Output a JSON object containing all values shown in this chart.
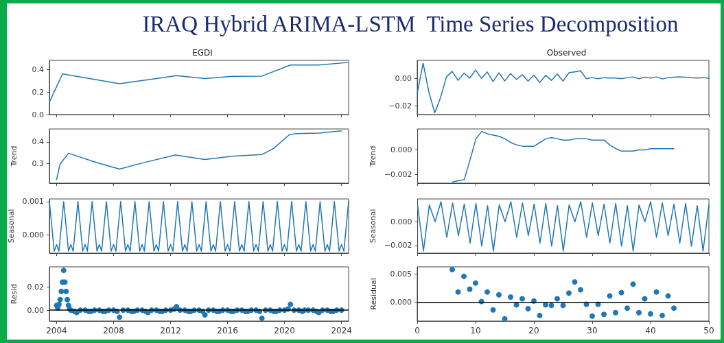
{
  "chart_data": [
    {
      "type": "line",
      "title": "EGDI",
      "annotations": [
        "IRAQ Hybrid ARIMA-LSTM  Time Series Decomposition"
      ],
      "color": "#1f77b4",
      "marker": "none",
      "line_style": "solid",
      "grid": false,
      "tick_labels": "y",
      "x": [
        "2003-07",
        "2004-06",
        "2008-06",
        "2010-07",
        "2012-06",
        "2014-06",
        "2016-05",
        "2018-06",
        "2020-06",
        "2022-06",
        "2024-06"
      ],
      "values": [
        0.11,
        0.36,
        0.274,
        0.31,
        0.345,
        0.319,
        0.339,
        0.341,
        0.439,
        0.439,
        0.461
      ],
      "xlim": [
        "2003-07",
        "2024-07"
      ],
      "xticks": [
        "2004",
        "2008",
        "2012",
        "2016",
        "2020",
        "2024"
      ],
      "ylim": [
        0,
        0.48
      ],
      "yticks": [
        {
          "value": 0,
          "label": "0.0"
        },
        0.2,
        0.4
      ]
    },
    {
      "type": "line",
      "ylabel": "Trend",
      "color": "#1f77b4",
      "marker": "none",
      "line_style": "solid",
      "grid": false,
      "tick_labels": "y",
      "x": [
        "2004-01",
        "2004-04",
        "2004-11",
        "2006-09",
        "2008-06",
        "2010-01",
        "2012-05",
        "2014-06",
        "2016-05",
        "2018-06",
        "2019-04",
        "2020-05",
        "2020-11",
        "2022-06",
        "2024-01"
      ],
      "values": [
        0.227,
        0.298,
        0.348,
        0.308,
        0.275,
        0.303,
        0.34,
        0.319,
        0.334,
        0.342,
        0.371,
        0.433,
        0.439,
        0.441,
        0.451
      ],
      "xlim": [
        "2003-07",
        "2024-07"
      ],
      "xticks": [
        "2004",
        "2008",
        "2012",
        "2016",
        "2020",
        "2024"
      ],
      "ylim": [
        0.21,
        0.46
      ],
      "yticks": [
        0.3,
        0.4
      ]
    },
    {
      "type": "line",
      "ylabel": "Seasonal",
      "color": "#1f77b4",
      "marker": "none",
      "line_style": "solid",
      "grid": false,
      "tick_labels": "y",
      "x": [
        "2003-07",
        "2003-11",
        "2004-01",
        "2004-03",
        "2004-07",
        "2004-11",
        "2005-01",
        "2005-03",
        "2005-07",
        "2005-11",
        "2006-01",
        "2006-03",
        "2006-07",
        "2006-11",
        "2007-01",
        "2007-03",
        "2007-07",
        "2007-11",
        "2008-01",
        "2008-03",
        "2008-07",
        "2008-11",
        "2009-01",
        "2009-03",
        "2009-07",
        "2009-11",
        "2010-01",
        "2010-03",
        "2010-07",
        "2010-11",
        "2011-01",
        "2011-03",
        "2011-07",
        "2011-11",
        "2012-01",
        "2012-03",
        "2012-07",
        "2012-11",
        "2013-01",
        "2013-03",
        "2013-07",
        "2013-11",
        "2014-01",
        "2014-03",
        "2014-07",
        "2014-11",
        "2015-01",
        "2015-03",
        "2015-07",
        "2015-11",
        "2016-01",
        "2016-03",
        "2016-07",
        "2016-11",
        "2017-01",
        "2017-03",
        "2017-07",
        "2017-11",
        "2018-01",
        "2018-03",
        "2018-07",
        "2018-11",
        "2019-01",
        "2019-03",
        "2019-07",
        "2019-11",
        "2020-01",
        "2020-03",
        "2020-07",
        "2020-11",
        "2021-01",
        "2021-03",
        "2021-07",
        "2021-11",
        "2022-01",
        "2022-03",
        "2022-07",
        "2022-11",
        "2023-01",
        "2023-03",
        "2023-07",
        "2023-11",
        "2024-01",
        "2024-03",
        "2024-07"
      ],
      "values": [
        0.001,
        -0.0005,
        -0.0003,
        -0.0005,
        0.001,
        -0.0005,
        -0.0003,
        -0.0005,
        0.001,
        -0.0005,
        -0.0003,
        -0.0005,
        0.001,
        -0.0005,
        -0.0003,
        -0.0005,
        0.001,
        -0.0005,
        -0.0003,
        -0.0005,
        0.001,
        -0.0005,
        -0.0003,
        -0.0005,
        0.001,
        -0.0005,
        -0.0003,
        -0.0005,
        0.001,
        -0.0005,
        -0.0003,
        -0.0005,
        0.001,
        -0.0005,
        -0.0003,
        -0.0005,
        0.001,
        -0.0005,
        -0.0003,
        -0.0005,
        0.001,
        -0.0005,
        -0.0003,
        -0.0005,
        0.001,
        -0.0005,
        -0.0003,
        -0.0005,
        0.001,
        -0.0005,
        -0.0003,
        -0.0005,
        0.001,
        -0.0005,
        -0.0003,
        -0.0005,
        0.001,
        -0.0005,
        -0.0003,
        -0.0005,
        0.001,
        -0.0005,
        -0.0003,
        -0.0005,
        0.001,
        -0.0005,
        -0.0003,
        -0.0005,
        0.001,
        -0.0005,
        -0.0003,
        -0.0005,
        0.001,
        -0.0005,
        -0.0003,
        -0.0005,
        0.001,
        -0.0005,
        -0.0003,
        -0.0005,
        0.001,
        -0.0005,
        -0.0003,
        -0.0005,
        0.001
      ],
      "xlim": [
        "2003-07",
        "2024-07"
      ],
      "xticks": [
        "2004",
        "2008",
        "2012",
        "2016",
        "2020",
        "2024"
      ],
      "ylim": [
        -0.00056,
        0.00108
      ],
      "yticks": [
        {
          "value": 0,
          "label": "0.000"
        },
        0.001
      ]
    },
    {
      "type": "scatter",
      "ylabel": "Resid",
      "color": "#1f77b4",
      "marker": "circle",
      "grid": false,
      "x": [
        "2004-01",
        "2004-02",
        "2004-03",
        "2004-04",
        "2004-05",
        "2004-06",
        "2004-07",
        "2004-08",
        "2004-09",
        "2004-10",
        "2004-11",
        "2004-12",
        "2005-01",
        "2005-04",
        "2005-06",
        "2005-09",
        "2006-01",
        "2006-04",
        "2006-06",
        "2006-09",
        "2007-01",
        "2007-04",
        "2007-06",
        "2007-09",
        "2008-01",
        "2008-04",
        "2008-06",
        "2008-09",
        "2009-01",
        "2009-04",
        "2009-06",
        "2009-09",
        "2010-01",
        "2010-04",
        "2010-06",
        "2010-09",
        "2011-01",
        "2011-04",
        "2011-06",
        "2011-09",
        "2012-01",
        "2012-04",
        "2012-06",
        "2012-09",
        "2013-01",
        "2013-04",
        "2013-06",
        "2013-09",
        "2014-01",
        "2014-04",
        "2014-06",
        "2014-09",
        "2015-01",
        "2015-04",
        "2015-06",
        "2015-09",
        "2016-01",
        "2016-04",
        "2016-06",
        "2016-09",
        "2017-01",
        "2017-04",
        "2017-06",
        "2017-09",
        "2018-01",
        "2018-04",
        "2018-06",
        "2018-09",
        "2019-01",
        "2019-04",
        "2019-06",
        "2019-09",
        "2020-01",
        "2020-04",
        "2020-06",
        "2020-09",
        "2021-01",
        "2021-04",
        "2021-06",
        "2021-09",
        "2022-01",
        "2022-04",
        "2022-06",
        "2022-09",
        "2023-01",
        "2023-04",
        "2023-06",
        "2023-09",
        "2024-01"
      ],
      "values": [
        0.004,
        0.002,
        0.005,
        0.009,
        0.016,
        0.024,
        0.034,
        0.024,
        0.016,
        0.009,
        0.004,
        0.001,
        0,
        -0.001,
        -0.002,
        0,
        0,
        -0.001,
        -0.001,
        0,
        0,
        -0.001,
        -0.001,
        0,
        0,
        -0.001,
        -0.006,
        0,
        0,
        -0.001,
        -0.001,
        0,
        0,
        -0.001,
        -0.002,
        0,
        0,
        -0.001,
        -0.001,
        0,
        0,
        0.001,
        0.003,
        0,
        0,
        -0.001,
        -0.001,
        0,
        0,
        -0.001,
        -0.004,
        0,
        0,
        -0.001,
        -0.001,
        0,
        0,
        -0.001,
        -0.001,
        0,
        0,
        -0.001,
        -0.001,
        0,
        0,
        -0.001,
        -0.007,
        0,
        0,
        -0.001,
        -0.001,
        0,
        0,
        0.001,
        0.005,
        0,
        0,
        -0.001,
        0,
        0,
        0,
        -0.001,
        -0.002,
        0,
        0,
        -0.001,
        -0.001,
        0,
        0
      ],
      "xlim": [
        "2003-07",
        "2024-07"
      ],
      "xticks": [
        "2004",
        "2008",
        "2012",
        "2016",
        "2020",
        "2024"
      ],
      "ylim": [
        -0.0093,
        0.037
      ],
      "yticks": [
        {
          "value": 0,
          "label": "0.00"
        },
        0.02
      ],
      "ref_lines": [
        {
          "axis": "y",
          "value": 0,
          "color": "#000000"
        }
      ]
    },
    {
      "type": "line",
      "title": "Observed",
      "color": "#1f77b4",
      "marker": "none",
      "line_style": "solid",
      "grid": false,
      "tick_labels": "y",
      "x": [
        0,
        1,
        2,
        3,
        4,
        5,
        6,
        7,
        8,
        9,
        10,
        11,
        12,
        13,
        14,
        15,
        16,
        17,
        18,
        19,
        20,
        21,
        22,
        23,
        24,
        25,
        26,
        27,
        28,
        29,
        30,
        31,
        32,
        33,
        34,
        35,
        36,
        37,
        38,
        39,
        40,
        41,
        42,
        43,
        44,
        45,
        46,
        47,
        48,
        49,
        50
      ],
      "values": [
        -0.011,
        0.011,
        -0.01,
        -0.025,
        -0.014,
        0.001,
        0.005,
        -0.0015,
        0.0037,
        0.0002,
        0.006,
        0.0,
        0.0046,
        -0.0024,
        0.004,
        -0.002,
        0.0034,
        -0.0008,
        0.0026,
        -0.002,
        0.0023,
        -0.003,
        0.0021,
        -0.0015,
        0.0031,
        -0.002,
        0.004,
        0.0047,
        0.0054,
        -0.0003,
        0.0005,
        -0.0003,
        0.0005,
        0.0002,
        0.0002,
        -0.0003,
        0.0005,
        0.001,
        -0.0003,
        0.0008,
        0.0002,
        0.001,
        -0.0005,
        0.0005,
        0.0008,
        0.001,
        0.0008,
        0.0005,
        0.0002,
        0.0005,
        0.0
      ],
      "xlim": [
        0,
        50
      ],
      "xticks": [
        0,
        10,
        20,
        30,
        40,
        50
      ],
      "ylim": [
        -0.0263,
        0.013
      ],
      "yticks": [
        {
          "value": -0.02,
          "label": "−0.02"
        },
        {
          "value": 0,
          "label": "0.00"
        }
      ]
    },
    {
      "type": "line",
      "ylabel": "Trend",
      "color": "#1f77b4",
      "marker": "none",
      "line_style": "solid",
      "grid": false,
      "tick_labels": "y",
      "x": [
        6,
        7,
        8,
        9,
        10,
        11,
        12,
        13,
        14,
        15,
        16,
        17,
        18,
        19,
        20,
        21,
        22,
        23,
        24,
        25,
        26,
        27,
        28,
        29,
        30,
        31,
        32,
        33,
        34,
        35,
        36,
        37,
        38,
        39,
        40,
        41,
        42,
        43,
        44
      ],
      "values": [
        -0.0026,
        -0.0025,
        -0.0024,
        -0.0008,
        0.0009,
        0.0015,
        0.0013,
        0.0012,
        0.0011,
        0.0009,
        0.0006,
        0.0004,
        0.0003,
        0.0003,
        0.0003,
        0.0006,
        0.0009,
        0.001,
        0.0009,
        0.0008,
        0.0008,
        0.0009,
        0.0009,
        0.0009,
        0.0008,
        0.0008,
        0.0008,
        0.0004,
        0.0001,
        -0.0001,
        -0.0001,
        -0.0001,
        0,
        0,
        0.0001,
        0.0001,
        0.0001,
        0.0001,
        0.0001
      ],
      "xlim": [
        0,
        50
      ],
      "xticks": [
        0,
        10,
        20,
        30,
        40,
        50
      ],
      "ylim": [
        -0.0027,
        0.0017
      ],
      "yticks": [
        {
          "value": -0.002,
          "label": "−0.002"
        },
        {
          "value": 0,
          "label": "0.000"
        }
      ]
    },
    {
      "type": "line",
      "ylabel": "Seasonal",
      "color": "#1f77b4",
      "marker": "none",
      "line_style": "solid",
      "grid": false,
      "tick_labels": "y",
      "x": [
        0,
        1,
        2,
        3,
        4,
        5,
        6,
        7,
        8,
        9,
        10,
        11,
        12,
        13,
        14,
        15,
        16,
        17,
        18,
        19,
        20,
        21,
        22,
        23,
        24,
        25,
        26,
        27,
        28,
        29,
        30,
        31,
        32,
        33,
        34,
        35,
        36,
        37,
        38,
        39,
        40,
        41,
        42,
        43,
        44,
        45,
        46,
        47,
        48,
        49,
        50
      ],
      "values": [
        0.00136,
        -0.00247,
        0.00142,
        0,
        0.0017,
        -0.00131,
        0.00159,
        -0.00116,
        0.0015,
        -0.00181,
        0.00155,
        -0.00206,
        0.00136,
        -0.00247,
        0.00142,
        0,
        0.0017,
        -0.00131,
        0.00159,
        -0.00116,
        0.0015,
        -0.00181,
        0.00155,
        -0.00206,
        0.00136,
        -0.00247,
        0.00142,
        0,
        0.0017,
        -0.00131,
        0.00159,
        -0.00116,
        0.0015,
        -0.00181,
        0.00155,
        -0.00206,
        0.00136,
        -0.00247,
        0.00142,
        0,
        0.0017,
        -0.00131,
        0.00159,
        -0.00116,
        0.0015,
        -0.00181,
        0.00155,
        -0.00206,
        0.00136,
        -0.00247,
        0.00142
      ],
      "xlim": [
        0,
        50
      ],
      "xticks": [
        0,
        10,
        20,
        30,
        40,
        50
      ],
      "ylim": [
        -0.00265,
        0.00193
      ],
      "yticks": [
        {
          "value": -0.002,
          "label": "−0.002"
        },
        {
          "value": 0,
          "label": "0.000"
        }
      ]
    },
    {
      "type": "scatter",
      "ylabel": "Residual",
      "color": "#1f77b4",
      "marker": "circle",
      "grid": false,
      "x": [
        6,
        7,
        8,
        9,
        10,
        11,
        12,
        13,
        14,
        15,
        16,
        17,
        18,
        19,
        20,
        21,
        22,
        23,
        24,
        25,
        26,
        27,
        28,
        29,
        30,
        31,
        32,
        33,
        34,
        35,
        36,
        37,
        38,
        39,
        40,
        41,
        42,
        43,
        44
      ],
      "values": [
        0.0058,
        0.0018,
        0.0046,
        0.0023,
        0.0034,
        0.0001,
        0.0018,
        -0.0014,
        0.0013,
        -0.003,
        0.0009,
        -0.0005,
        0.0006,
        -0.0012,
        0.0002,
        -0.0024,
        -0.0005,
        -0.0006,
        0.0006,
        -0.0006,
        0.0016,
        0.0036,
        0.0022,
        -0.0004,
        -0.0025,
        -0.0004,
        -0.0022,
        0.0011,
        -0.0019,
        0.0017,
        -0.0011,
        0.0032,
        -0.0019,
        0.0006,
        -0.0021,
        0.0018,
        -0.0024,
        0.0011,
        -0.0011
      ],
      "xlim": [
        0,
        50
      ],
      "xticks": [
        0,
        10,
        20,
        30,
        40,
        50
      ],
      "ylim": [
        -0.0034,
        0.0063
      ],
      "yticks": [
        {
          "value": 0,
          "label": "0.000"
        },
        0.005
      ],
      "ref_lines": [
        {
          "axis": "y",
          "value": 0,
          "color": "#000000"
        }
      ]
    }
  ]
}
